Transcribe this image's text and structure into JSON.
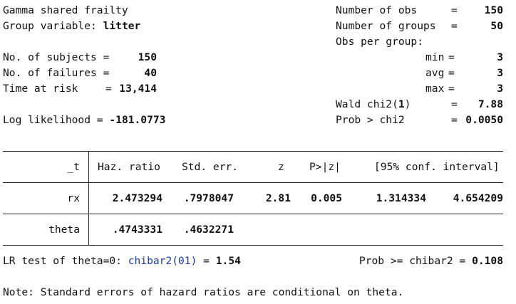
{
  "header": {
    "model_title": "Gamma shared frailty",
    "group_label": "Group variable: ",
    "group_value": "litter",
    "subjects_label": "No. of subjects =",
    "subjects_value": "150",
    "failures_label": "No. of failures =",
    "failures_value": "40",
    "risk_label": "Time at risk",
    "risk_eq": "=",
    "risk_value": "13,414",
    "loglik_label": "Log likelihood = ",
    "loglik_value": "-181.0773",
    "nobs_label": "Number of obs",
    "nobs_value": "150",
    "ngroups_label": "Number of groups",
    "ngroups_value": "50",
    "obs_per_group_label": "Obs per group:",
    "min_label": "min",
    "min_value": "3",
    "avg_label": "avg",
    "avg_value": "3",
    "max_label": "max",
    "max_value": "3",
    "wald_label": "Wald chi2(",
    "wald_df": "1",
    "wald_close": ")",
    "wald_value": "7.88",
    "prob_label": "Prob > chi2",
    "prob_value": "0.0050",
    "eq": "="
  },
  "table": {
    "headers": {
      "var": "_t",
      "haz": "Haz. ratio",
      "se": "Std. err.",
      "z": "z",
      "p": "P>|z|",
      "ci": "[95% conf. interval]"
    },
    "rows": [
      {
        "name": "rx",
        "haz": "2.473294",
        "se": ".7978047",
        "z": "2.81",
        "p": "0.005",
        "lo": "1.314334",
        "hi": "4.654209"
      },
      {
        "name": "theta",
        "haz": ".4743331",
        "se": ".4632271"
      }
    ]
  },
  "lr_test": {
    "label": "LR test of theta=0: ",
    "link": "chibar2(01)",
    "eq": " = ",
    "value": "1.54",
    "prob_label": "Prob >= chibar2 = ",
    "prob_value": "0.108"
  },
  "note": "Note: Standard errors of hazard ratios are conditional on theta."
}
